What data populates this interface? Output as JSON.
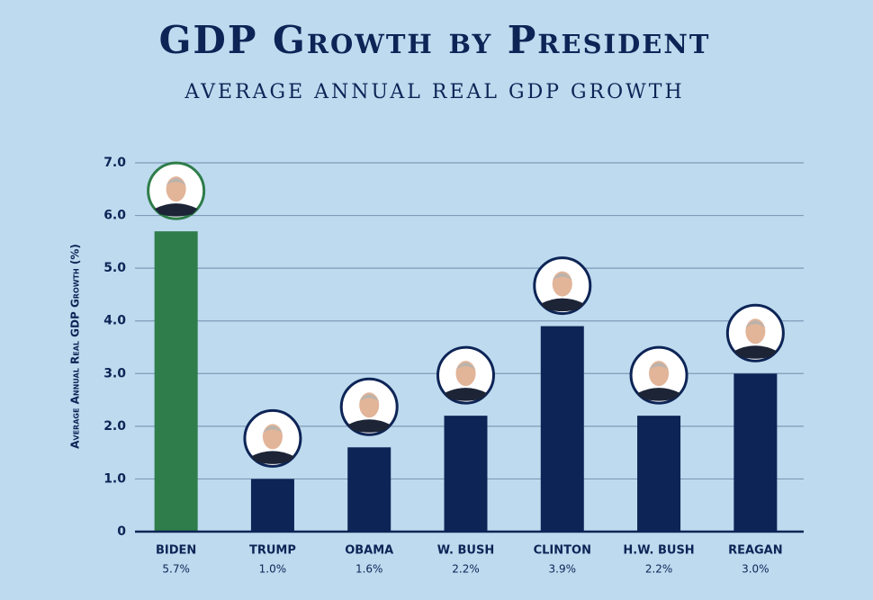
{
  "chart_data": {
    "type": "bar",
    "title": "GDP Growth by President",
    "subtitle": "Average Annual Real GDP Growth",
    "y_label": "Average Annual Real GDP Growth (%)",
    "categories": [
      "BIDEN",
      "TRUMP",
      "OBAMA",
      "W. BUSH",
      "CLINTON",
      "H.W. BUSH",
      "REAGAN"
    ],
    "values": [
      5.7,
      1.0,
      1.6,
      2.2,
      3.9,
      2.2,
      3.0
    ],
    "value_labels": [
      "5.7%",
      "1.0%",
      "1.6%",
      "2.2%",
      "3.9%",
      "2.2%",
      "3.0%"
    ],
    "colors": [
      "#2e7d4a",
      "#0d2456",
      "#0d2456",
      "#0d2456",
      "#0d2456",
      "#0d2456",
      "#0d2456"
    ],
    "ylim": [
      0,
      7
    ],
    "yticks": [
      0,
      {
        "value": 1,
        "label": "1.0"
      },
      {
        "value": 2,
        "label": "2.0"
      },
      {
        "value": 3,
        "label": "3.0"
      },
      {
        "value": 4,
        "label": "4.0"
      },
      {
        "value": 5,
        "label": "5.0"
      },
      {
        "value": 6,
        "label": "6.0"
      },
      {
        "value": 7,
        "label": "7.0"
      }
    ],
    "grid": true
  }
}
